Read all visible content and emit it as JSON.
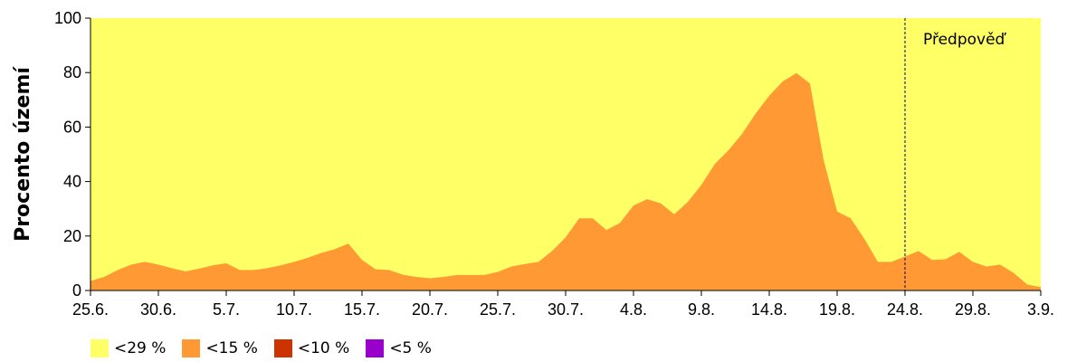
{
  "chart_data": {
    "type": "area",
    "ylabel": "Procento území",
    "ylim": [
      0,
      100
    ],
    "yticks": [
      0,
      20,
      40,
      60,
      80,
      100
    ],
    "x_tick_labels": [
      "25.6.",
      "30.6.",
      "5.7.",
      "10.7.",
      "15.7.",
      "20.7.",
      "25.7.",
      "30.7.",
      "4.8.",
      "9.8.",
      "14.8.",
      "19.8.",
      "24.8.",
      "29.8.",
      "3.9."
    ],
    "x_tick_day_index": [
      0,
      5,
      10,
      15,
      20,
      25,
      30,
      35,
      40,
      45,
      50,
      55,
      60,
      65,
      70
    ],
    "background_class": "<29 %",
    "forecast_label": "Předpověď",
    "forecast_start_day_index": 60,
    "legend": [
      {
        "label": "<29 %",
        "color": "#ffff66"
      },
      {
        "label": "<15 %",
        "color": "#ff9933"
      },
      {
        "label": "<10 %",
        "color": "#cc3300"
      },
      {
        "label": "<5 %",
        "color": "#9900cc"
      }
    ],
    "series": [
      {
        "name": "<15 %",
        "color": "#ff9933",
        "values": [
          3.5,
          5,
          7.5,
          9.5,
          10.5,
          9.5,
          8.2,
          7,
          8,
          9.2,
          10,
          7.5,
          7.5,
          8.2,
          9.2,
          10.5,
          12,
          13.8,
          15.2,
          17.2,
          11.2,
          7.8,
          7.5,
          5.8,
          5,
          4.5,
          5,
          5.7,
          5.7,
          5.7,
          6.8,
          8.8,
          9.7,
          10.5,
          14.5,
          19.5,
          26.5,
          26.5,
          22.2,
          24.8,
          31.2,
          33.5,
          32,
          28,
          32.5,
          38.8,
          46.5,
          51.5,
          57.5,
          65,
          71.5,
          76.8,
          79.8,
          76,
          48,
          29,
          26.5,
          19,
          10.5,
          10.5,
          12.5,
          14.5,
          11.2,
          11.5,
          14.2,
          10.5,
          8.8,
          9.5,
          6.5,
          2.2,
          1.2
        ]
      }
    ]
  }
}
